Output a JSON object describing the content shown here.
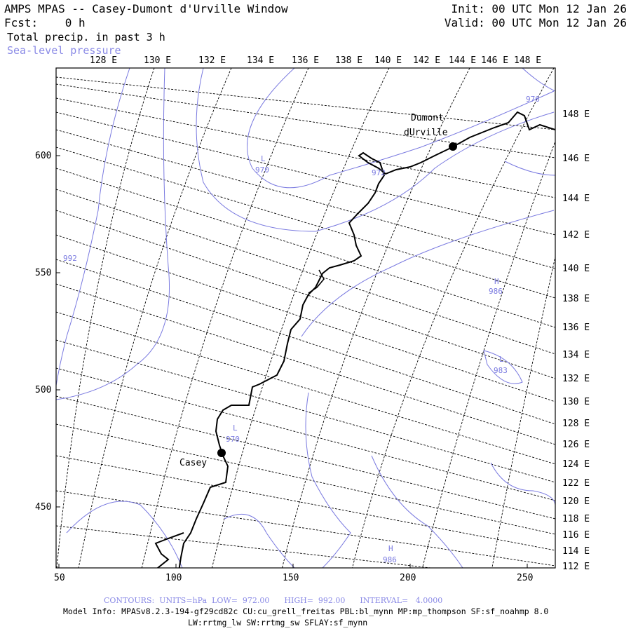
{
  "header": {
    "title": "AMPS MPAS -- Casey-Dumont d'Urville Window",
    "fcst": "Fcst:    0 h",
    "field1": "Total precip. in past 3 h",
    "field2": "Sea-level pressure",
    "init": "Init: 00 UTC Mon 12 Jan 26",
    "valid": "Valid: 00 UTC Mon 12 Jan 26"
  },
  "axes": {
    "top_ticks": [
      "128 E",
      "130 E",
      "132 E",
      "134 E",
      "136 E",
      "138 E",
      "140 E",
      "142 E",
      "144 E",
      "146 E",
      "148 E"
    ],
    "right_ticks": [
      "148 E",
      "146 E",
      "144 E",
      "142 E",
      "140 E",
      "138 E",
      "136 E",
      "134 E",
      "132 E",
      "130 E",
      "128 E",
      "126 E",
      "124 E",
      "122 E",
      "120 E",
      "118 E",
      "116 E",
      "114 E",
      "112 E"
    ],
    "left_ticks": [
      "600",
      "550",
      "500",
      "450"
    ],
    "bottom_ticks": [
      "50",
      "100",
      "150",
      "200",
      "250"
    ]
  },
  "stations": [
    {
      "name": "Dumont",
      "name2": "dUrville"
    },
    {
      "name": "Casey"
    }
  ],
  "contour_labels": {
    "l1_letter": "L",
    "l1_val": "970",
    "l2_val": "972",
    "l3_val": "992",
    "h1_letter": "H",
    "h1_val": "986",
    "l4_letter": "L",
    "l4_val": "983",
    "l5_letter": "L",
    "l5_val": "970",
    "h2_letter": "H",
    "h2_val": "986",
    "c976": "976"
  },
  "footer": {
    "contours": "CONTOURS:  UNITS=hPa  LOW=  972.00      HIGH=  992.00      INTERVAL=   4.0000",
    "model1": "Model Info: MPASv8.2.3-194-gf29cd82c CU:cu_grell_freitas PBL:bl_mynn MP:mp_thompson SF:sf_noahmp 8.0",
    "model2": "LW:rrtmg_lw SW:rrtmg_sw SFLAY:sf_mynn"
  },
  "colors": {
    "contour": "#7a7ae0",
    "coast": "#000000",
    "grid": "#000000"
  }
}
